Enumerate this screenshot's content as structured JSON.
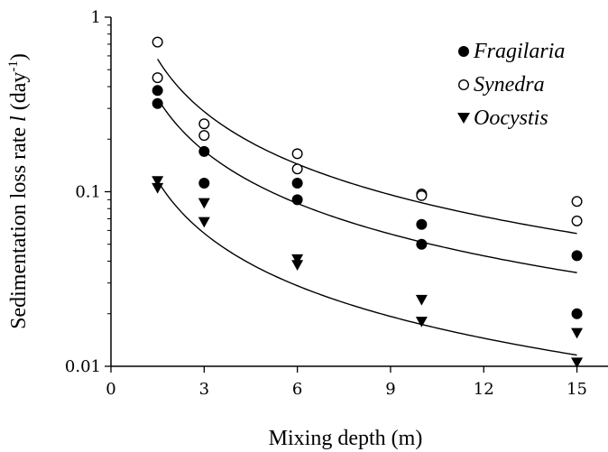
{
  "chart_data": {
    "type": "scatter",
    "x_scale": "linear",
    "y_scale": "log",
    "xlabel": "Mixing depth (m)",
    "ylabel": {
      "prefix": "Sedimentation loss rate ",
      "symbol": "l",
      "unit_open": " (day",
      "unit_exp": "-1",
      "unit_close": ")"
    },
    "xlim": [
      0,
      16
    ],
    "ylim": [
      0.01,
      1
    ],
    "x_ticks": [
      0,
      3,
      6,
      9,
      12,
      15
    ],
    "x_tick_labels": [
      "0",
      "3",
      "6",
      "9",
      "12",
      "15"
    ],
    "y_ticks": [
      0.01,
      0.1,
      1
    ],
    "y_tick_labels": [
      "0.01",
      "0.1",
      "1"
    ],
    "grid": false,
    "legend_position": "top-right",
    "series": [
      {
        "name": "Fragilaria",
        "marker": "filled-circle",
        "color": "#000000",
        "x": [
          1.5,
          1.5,
          3,
          3,
          6,
          6,
          10,
          10,
          15,
          15
        ],
        "y": [
          0.38,
          0.32,
          0.17,
          0.112,
          0.112,
          0.09,
          0.065,
          0.05,
          0.043,
          0.02
        ]
      },
      {
        "name": "Synedra",
        "marker": "open-circle",
        "color": "#000000",
        "x": [
          1.5,
          1.5,
          3,
          3,
          6,
          6,
          10,
          10,
          15,
          15
        ],
        "y": [
          0.72,
          0.45,
          0.245,
          0.21,
          0.165,
          0.135,
          0.097,
          0.095,
          0.088,
          0.068
        ]
      },
      {
        "name": "Oocystis",
        "marker": "filled-triangle-down",
        "color": "#000000",
        "x": [
          1.5,
          1.5,
          3,
          3,
          6,
          6,
          10,
          10,
          15,
          15
        ],
        "y": [
          0.115,
          0.105,
          0.086,
          0.067,
          0.041,
          0.038,
          0.024,
          0.018,
          0.0155,
          0.0105
        ]
      }
    ],
    "fit_curves": [
      {
        "series": "Synedra",
        "x": [
          1.5,
          3,
          6,
          10,
          15
        ],
        "y": [
          0.57,
          0.29,
          0.145,
          0.087,
          0.057
        ]
      },
      {
        "series": "Fragilaria",
        "x": [
          1.5,
          3,
          6,
          10,
          15
        ],
        "y": [
          0.34,
          0.172,
          0.086,
          0.052,
          0.034
        ]
      },
      {
        "series": "Oocystis",
        "x": [
          1.5,
          3,
          6,
          10,
          15
        ],
        "y": [
          0.115,
          0.058,
          0.029,
          0.0175,
          0.0115
        ]
      }
    ]
  }
}
